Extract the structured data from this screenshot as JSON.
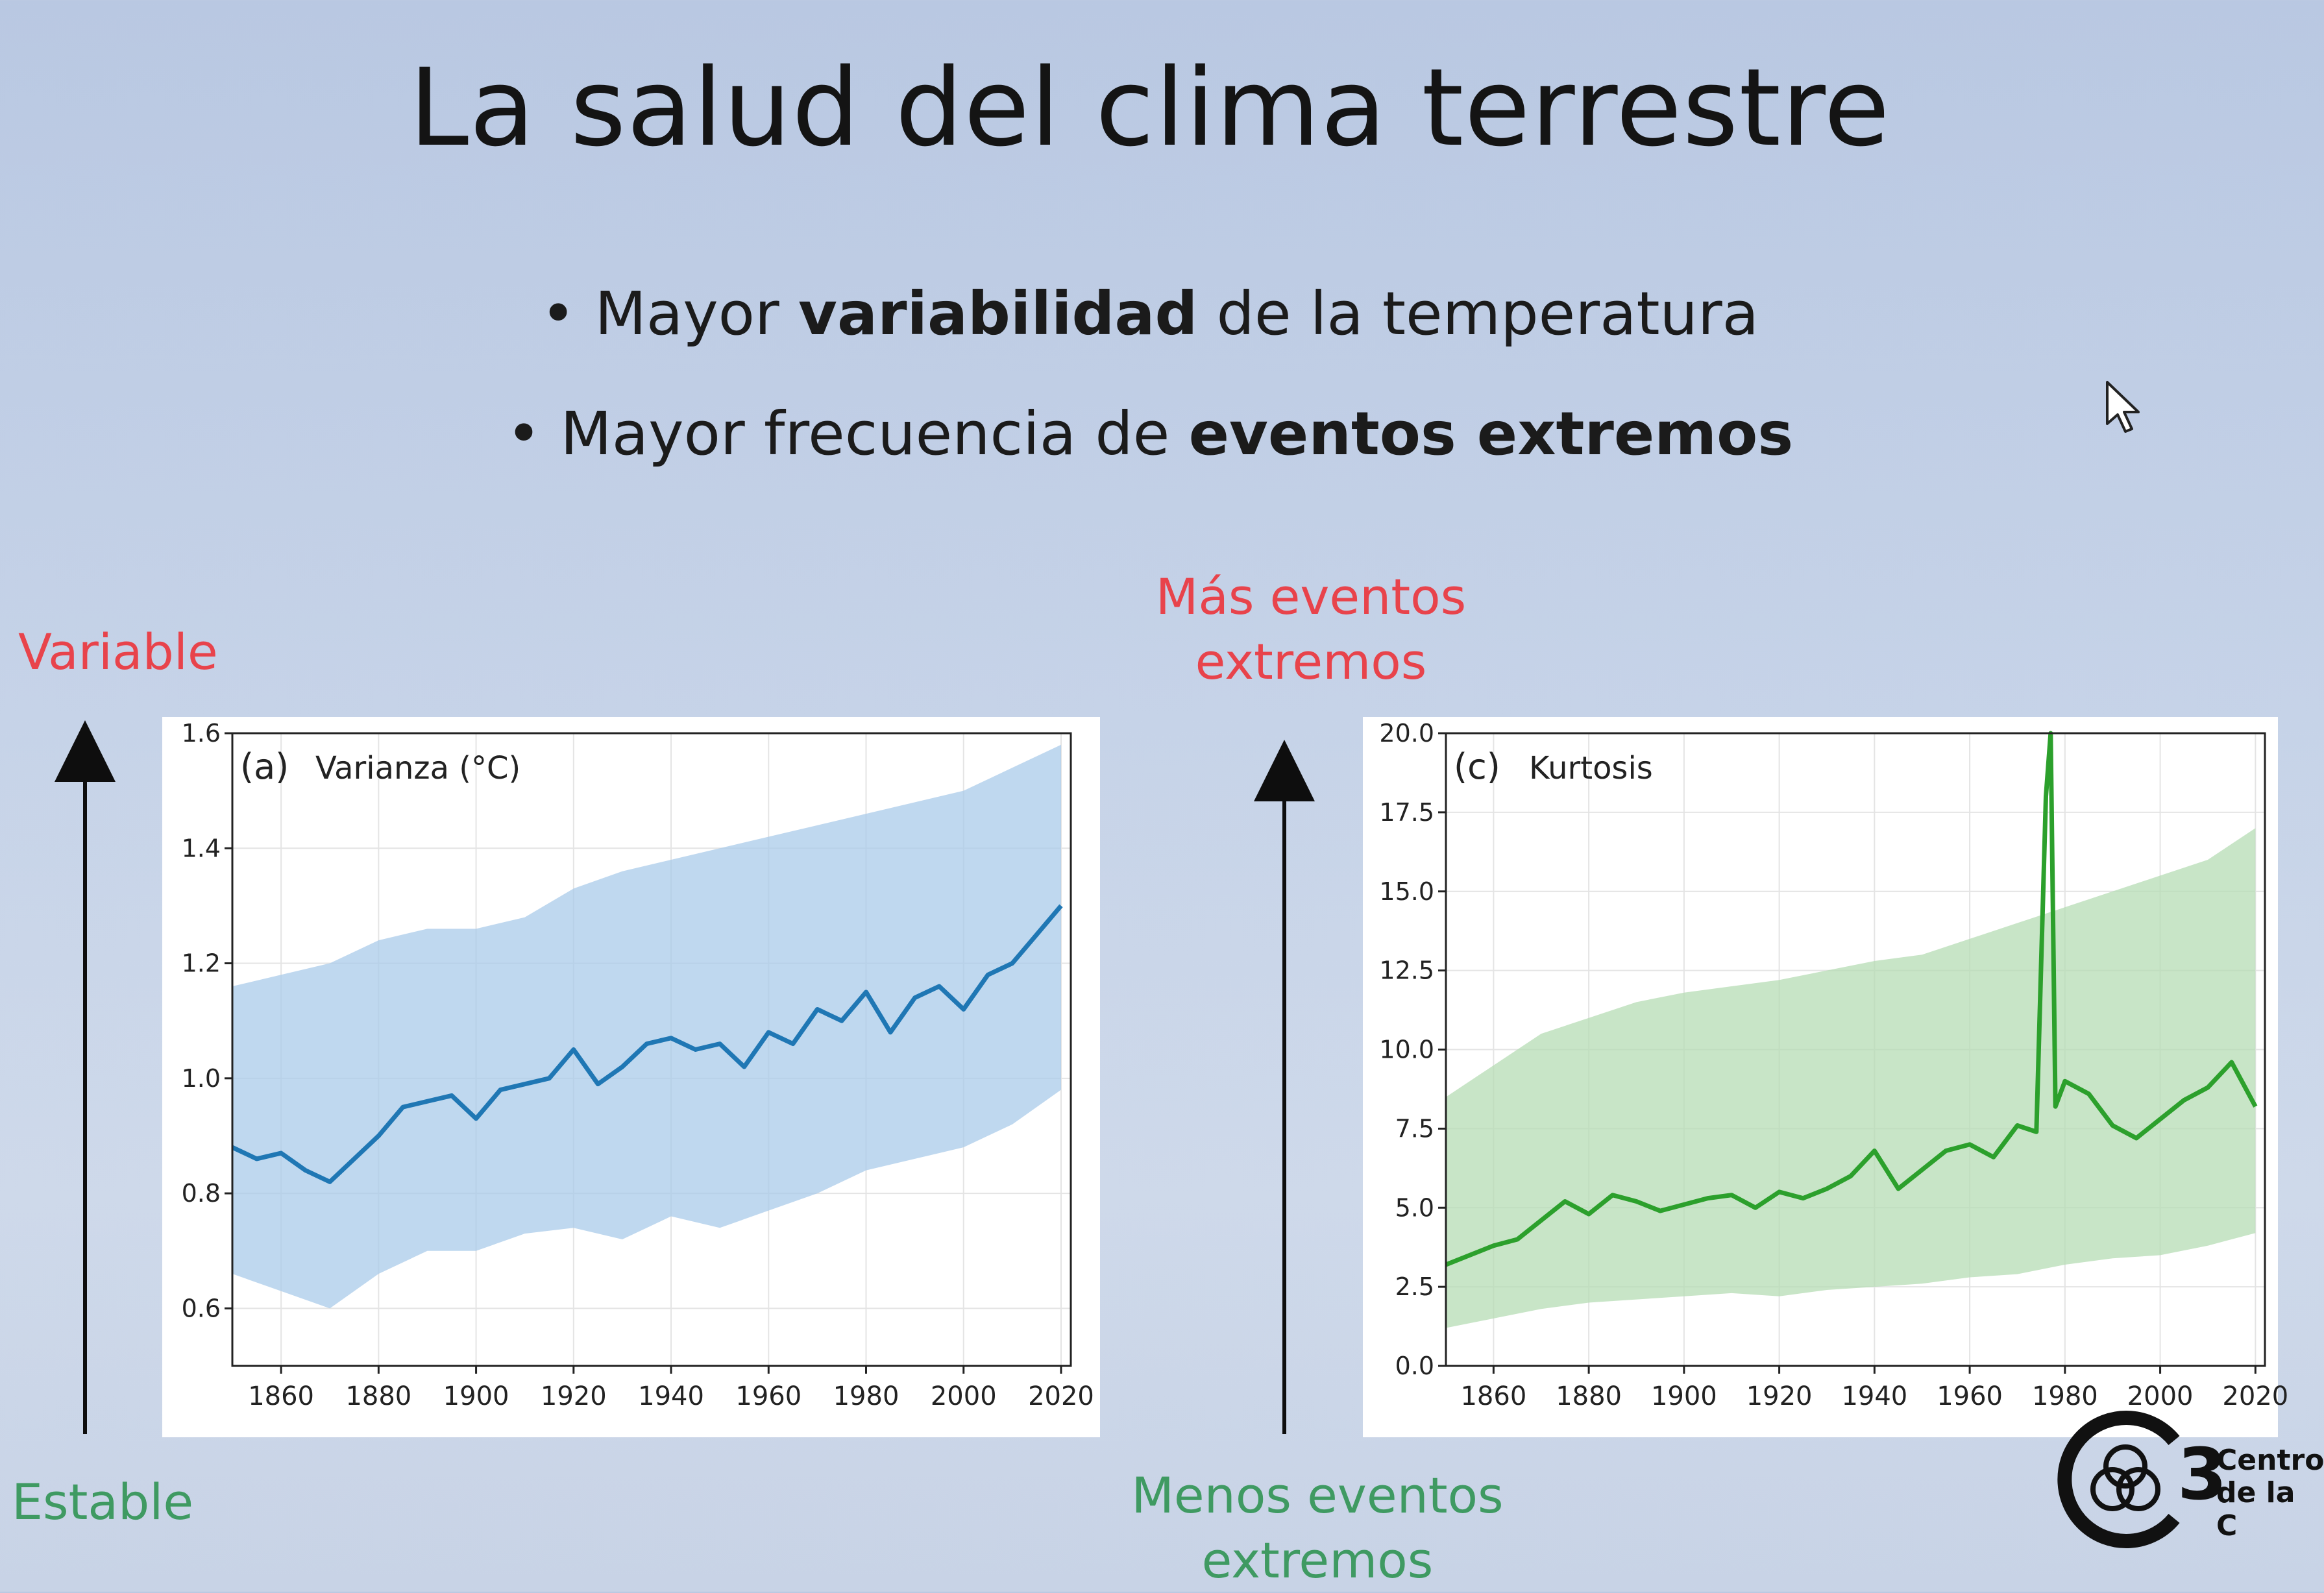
{
  "slide": {
    "title": "La salud del clima terrestre",
    "bullets": [
      {
        "prefix": "• Mayor ",
        "bold": "variabilidad",
        "suffix": " de la temperatura"
      },
      {
        "prefix": "• Mayor frecuencia de ",
        "bold": "eventos extremos",
        "suffix": ""
      }
    ],
    "left_top_label": "Variable",
    "left_bottom_label": "Estable",
    "right_top_label_l1": "Más eventos",
    "right_top_label_l2": "extremos",
    "right_bottom_label_l1": "Menos eventos",
    "right_bottom_label_l2": "extremos",
    "logo_text_l1": "Centro",
    "logo_text_l2": "de la C",
    "logo_digit": "3"
  },
  "colors": {
    "red_label": "#e8434b",
    "green_label": "#3f9a62",
    "variance_line": "#1f77b4",
    "variance_band": "#a9cbea",
    "kurtosis_line": "#2ca02c",
    "kurtosis_band": "#b6dcb4"
  },
  "icons": [
    "arrow-up-icon",
    "mouse-cursor-icon",
    "c3-logo-icon"
  ],
  "chart_data": [
    {
      "type": "line",
      "panel_label": "(a)",
      "title": "Varianza (°C)",
      "xlim": [
        1850,
        2022
      ],
      "ylim": [
        0.5,
        1.6
      ],
      "xticks": [
        1860,
        1880,
        1900,
        1920,
        1940,
        1960,
        1980,
        2000,
        2020
      ],
      "yticks": [
        0.6,
        0.8,
        1.0,
        1.2,
        1.4,
        1.6
      ],
      "grid": true,
      "series": [
        {
          "x": [
            1850,
            1855,
            1860,
            1865,
            1870,
            1875,
            1880,
            1885,
            1890,
            1895,
            1900,
            1905,
            1910,
            1915,
            1920,
            1925,
            1930,
            1935,
            1940,
            1945,
            1950,
            1955,
            1960,
            1965,
            1970,
            1975,
            1980,
            1985,
            1990,
            1995,
            2000,
            2005,
            2010,
            2015,
            2020
          ],
          "values": [
            0.88,
            0.86,
            0.87,
            0.84,
            0.82,
            0.86,
            0.9,
            0.95,
            0.96,
            0.97,
            0.93,
            0.98,
            0.99,
            1.0,
            1.05,
            0.99,
            1.02,
            1.06,
            1.07,
            1.05,
            1.06,
            1.02,
            1.08,
            1.06,
            1.12,
            1.1,
            1.15,
            1.08,
            1.14,
            1.16,
            1.12,
            1.18,
            1.2,
            1.25,
            1.3
          ]
        }
      ],
      "band": {
        "x": [
          1850,
          1860,
          1870,
          1880,
          1890,
          1900,
          1910,
          1920,
          1930,
          1940,
          1950,
          1960,
          1970,
          1980,
          1990,
          2000,
          2010,
          2020
        ],
        "lower": [
          0.66,
          0.63,
          0.6,
          0.66,
          0.7,
          0.7,
          0.73,
          0.74,
          0.72,
          0.76,
          0.74,
          0.77,
          0.8,
          0.84,
          0.86,
          0.88,
          0.92,
          0.98
        ],
        "upper": [
          1.16,
          1.18,
          1.2,
          1.24,
          1.26,
          1.26,
          1.28,
          1.33,
          1.36,
          1.38,
          1.4,
          1.42,
          1.44,
          1.46,
          1.48,
          1.5,
          1.54,
          1.58
        ]
      }
    },
    {
      "type": "line",
      "panel_label": "(c)",
      "title": "Kurtosis",
      "xlim": [
        1850,
        2022
      ],
      "ylim": [
        0.0,
        20.0
      ],
      "xticks": [
        1860,
        1880,
        1900,
        1920,
        1940,
        1960,
        1980,
        2000,
        2020
      ],
      "yticks": [
        0.0,
        2.5,
        5.0,
        7.5,
        10.0,
        12.5,
        15.0,
        17.5,
        20.0
      ],
      "grid": true,
      "series": [
        {
          "x": [
            1850,
            1855,
            1860,
            1865,
            1870,
            1875,
            1880,
            1885,
            1890,
            1895,
            1900,
            1905,
            1910,
            1915,
            1920,
            1925,
            1930,
            1935,
            1940,
            1945,
            1950,
            1955,
            1960,
            1965,
            1970,
            1974,
            1976,
            1977,
            1978,
            1980,
            1985,
            1990,
            1995,
            2000,
            2005,
            2010,
            2015,
            2020
          ],
          "values": [
            3.2,
            3.5,
            3.8,
            4.0,
            4.6,
            5.2,
            4.8,
            5.4,
            5.2,
            4.9,
            5.1,
            5.3,
            5.4,
            5.0,
            5.5,
            5.3,
            5.6,
            6.0,
            6.8,
            5.6,
            6.2,
            6.8,
            7.0,
            6.6,
            7.6,
            7.4,
            18.0,
            20.0,
            8.2,
            9.0,
            8.6,
            7.6,
            7.2,
            7.8,
            8.4,
            8.8,
            9.6,
            8.2
          ]
        }
      ],
      "band": {
        "x": [
          1850,
          1860,
          1870,
          1880,
          1890,
          1900,
          1910,
          1920,
          1930,
          1940,
          1950,
          1960,
          1970,
          1980,
          1990,
          2000,
          2010,
          2020
        ],
        "lower": [
          1.2,
          1.5,
          1.8,
          2.0,
          2.1,
          2.2,
          2.3,
          2.2,
          2.4,
          2.5,
          2.6,
          2.8,
          2.9,
          3.2,
          3.4,
          3.5,
          3.8,
          4.2
        ],
        "upper": [
          8.5,
          9.5,
          10.5,
          11.0,
          11.5,
          11.8,
          12.0,
          12.2,
          12.5,
          12.8,
          13.0,
          13.5,
          14.0,
          14.5,
          15.0,
          15.5,
          16.0,
          17.0
        ]
      }
    }
  ]
}
